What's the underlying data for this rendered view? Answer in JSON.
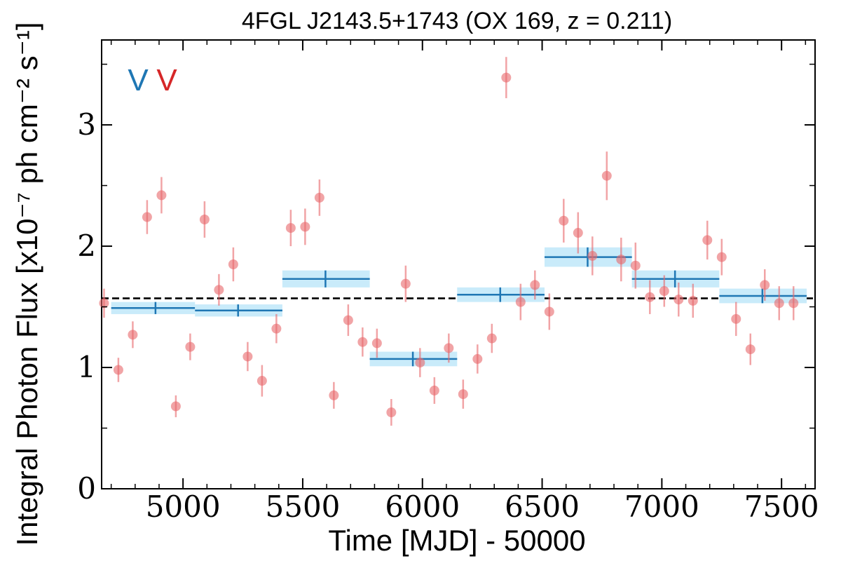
{
  "chart_data": {
    "type": "scatter",
    "title": "4FGL J2143.5+1743 (OX 169, z = 0.211)",
    "xlabel": "Time [MJD] - 50000",
    "ylabel": "Integral Photon Flux [x10⁻⁷ ph cm⁻² s⁻¹]",
    "xlim": [
      4660,
      7640
    ],
    "ylim": [
      0,
      3.7
    ],
    "x_ticks": [
      5000,
      5500,
      6000,
      6500,
      7000,
      7500
    ],
    "y_ticks": [
      0,
      1,
      2,
      3
    ],
    "legend_marks": [
      {
        "text": "V",
        "color": "#1f77b4"
      },
      {
        "text": "V",
        "color": "#d62728"
      }
    ],
    "mean_line": 1.57,
    "colors": {
      "points": "#e8676a",
      "bins": "#1f77b4",
      "bin_band": "#c9ebfa",
      "mean_line": "#000000"
    },
    "series": [
      {
        "kind": "points",
        "x": [
          4670,
          4730,
          4790,
          4850,
          4910,
          4970,
          5030,
          5090,
          5150,
          5210,
          5270,
          5330,
          5390,
          5450,
          5510,
          5570,
          5630,
          5690,
          5750,
          5810,
          5870,
          5930,
          5990,
          6050,
          6110,
          6170,
          6230,
          6290,
          6350,
          6410,
          6470,
          6530,
          6590,
          6650,
          6710,
          6770,
          6830,
          6890,
          6950,
          7010,
          7070,
          7130,
          7190,
          7250,
          7310,
          7370,
          7430,
          7490,
          7550
        ],
        "y": [
          1.53,
          0.98,
          1.27,
          2.24,
          2.42,
          0.68,
          1.17,
          2.22,
          1.64,
          1.85,
          1.09,
          0.89,
          1.32,
          2.15,
          2.16,
          2.4,
          0.77,
          1.39,
          1.21,
          1.2,
          0.63,
          1.69,
          1.04,
          0.81,
          1.16,
          0.78,
          1.07,
          1.24,
          3.39,
          1.54,
          1.68,
          1.46,
          2.21,
          2.11,
          1.92,
          2.58,
          1.89,
          1.84,
          1.58,
          1.63,
          1.56,
          1.55,
          2.05,
          1.91,
          1.4,
          1.15,
          1.68,
          1.53,
          1.53
        ],
        "yerr": [
          0.12,
          0.1,
          0.11,
          0.14,
          0.15,
          0.09,
          0.11,
          0.15,
          0.13,
          0.14,
          0.12,
          0.13,
          0.12,
          0.15,
          0.15,
          0.15,
          0.11,
          0.13,
          0.12,
          0.12,
          0.11,
          0.15,
          0.12,
          0.11,
          0.12,
          0.12,
          0.12,
          0.12,
          0.17,
          0.15,
          0.12,
          0.15,
          0.18,
          0.17,
          0.16,
          0.2,
          0.18,
          0.19,
          0.14,
          0.13,
          0.14,
          0.14,
          0.16,
          0.15,
          0.14,
          0.13,
          0.13,
          0.14,
          0.14
        ]
      },
      {
        "kind": "bins",
        "x_start": [
          4700,
          5050,
          5415,
          5780,
          6145,
          6510,
          6875,
          7240
        ],
        "x_end": [
          5050,
          5415,
          5780,
          6145,
          6510,
          6875,
          7240,
          7605
        ],
        "x_center": [
          4885,
          5230,
          5595,
          5960,
          6325,
          6690,
          7055,
          7420
        ],
        "y": [
          1.49,
          1.47,
          1.73,
          1.07,
          1.6,
          1.91,
          1.73,
          1.59
        ],
        "yerr": [
          0.05,
          0.05,
          0.07,
          0.06,
          0.06,
          0.08,
          0.07,
          0.06
        ]
      }
    ]
  }
}
